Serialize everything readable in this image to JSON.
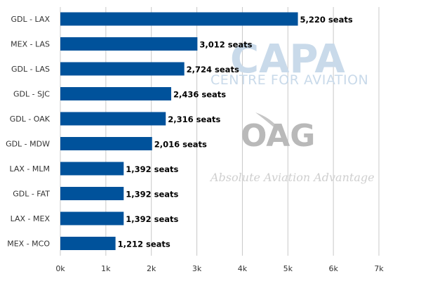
{
  "chart_data": {
    "type": "bar",
    "orientation": "horizontal",
    "categories": [
      "GDL - LAX",
      "MEX - LAS",
      "GDL - LAS",
      "GDL - SJC",
      "GDL - OAK",
      "GDL - MDW",
      "LAX - MLM",
      "GDL - FAT",
      "LAX - MEX",
      "MEX - MCO"
    ],
    "values": [
      5220,
      3012,
      2724,
      2436,
      2316,
      2016,
      1392,
      1392,
      1392,
      1212
    ],
    "data_labels": [
      "5,220 seats",
      "3,012 seats",
      "2,724 seats",
      "2,436 seats",
      "2,316 seats",
      "2,016 seats",
      "1,392 seats",
      "1,392 seats",
      "1,392 seats",
      "1,212 seats"
    ],
    "xlim": [
      0,
      7000
    ],
    "xticks": [
      0,
      1000,
      2000,
      3000,
      4000,
      5000,
      6000,
      7000
    ],
    "xtick_labels": [
      "0k",
      "1k",
      "2k",
      "3k",
      "4k",
      "5k",
      "6k",
      "7k"
    ],
    "grid": "vertical",
    "bar_color": "#00529b",
    "grid_color": "#c8c8c8"
  },
  "watermarks": {
    "capa_logo": "CAPA",
    "capa_subtitle": "CENTRE FOR AVIATION",
    "oag_logo": "OAG",
    "oag_tagline": "Absolute Aviation Advantage"
  }
}
